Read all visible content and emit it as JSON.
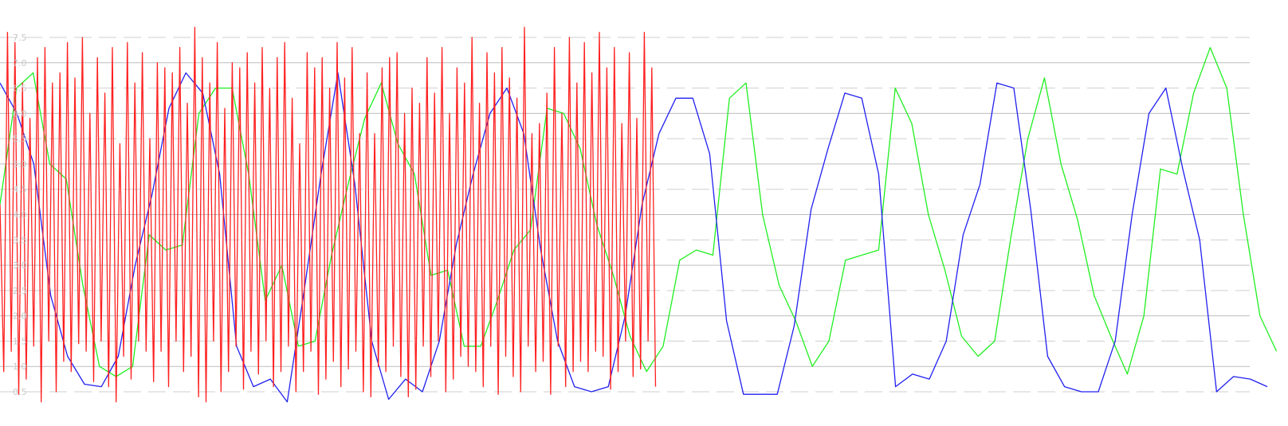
{
  "chart_data": {
    "type": "line",
    "grid": true,
    "legend": "none",
    "ylim": [
      0.3,
      7.7
    ],
    "yticks": [
      {
        "value": 0.5,
        "label": "0.5",
        "style": "dashed"
      },
      {
        "value": 1.0,
        "label": "1.0",
        "style": "solid"
      },
      {
        "value": 1.5,
        "label": "1.5",
        "style": "dashed"
      },
      {
        "value": 2.0,
        "label": "2.0",
        "style": "solid"
      },
      {
        "value": 2.5,
        "label": "2.5",
        "style": "dashed"
      },
      {
        "value": 3.0,
        "label": "3.0",
        "style": "solid"
      },
      {
        "value": 3.5,
        "label": "3.5",
        "style": "dashed"
      },
      {
        "value": 4.0,
        "label": "4.0",
        "style": "solid"
      },
      {
        "value": 4.5,
        "label": "4.5",
        "style": "dashed"
      },
      {
        "value": 5.0,
        "label": "5.0",
        "style": "solid"
      },
      {
        "value": 5.5,
        "label": "5.5",
        "style": "dashed"
      },
      {
        "value": 6.0,
        "label": "6.0",
        "style": "solid"
      },
      {
        "value": 6.5,
        "label": "6.5",
        "style": "dashed"
      },
      {
        "value": 7.0,
        "label": "7.0",
        "style": "solid"
      },
      {
        "value": 7.5,
        "label": "7.5",
        "style": "dashed"
      }
    ],
    "grid_colors": {
      "solid": "#bdbdbd",
      "dashed": "#cfcfcf"
    },
    "series": [
      {
        "color": "#ff2020",
        "values": [
          4.2,
          0.9,
          7.6,
          1.3,
          7.4,
          0.45,
          6.6,
          0.75,
          5.9,
          1.4,
          7.1,
          0.3,
          7.3,
          1.5,
          6.6,
          0.5,
          6.8,
          1.1,
          7.4,
          0.9,
          6.7,
          1.45,
          7.5,
          1.3,
          6.0,
          0.7,
          7.1,
          1.5,
          6.4,
          0.6,
          7.3,
          0.3,
          5.4,
          1.2,
          7.4,
          0.75,
          6.6,
          1.5,
          7.2,
          1.3,
          5.5,
          0.7,
          7.0,
          1.3,
          6.9,
          0.6,
          6.8,
          1.5,
          7.3,
          0.9,
          6.2,
          1.2,
          7.7,
          0.4,
          7.1,
          0.3,
          6.6,
          1.5,
          7.4,
          0.5,
          6.1,
          0.9,
          7.0,
          1.4,
          6.9,
          0.55,
          7.2,
          1.3,
          6.6,
          0.85,
          7.3,
          1.5,
          6.5,
          0.6,
          7.1,
          0.9,
          7.4,
          1.4,
          6.3,
          0.5,
          5.4,
          0.9,
          7.2,
          1.3,
          6.9,
          0.45,
          7.1,
          0.75,
          6.5,
          1.1,
          7.4,
          0.6,
          6.7,
          0.95,
          7.3,
          1.3,
          5.6,
          0.5,
          6.8,
          0.4,
          5.6,
          1.0,
          6.9,
          0.9,
          7.1,
          1.4,
          7.2,
          0.8,
          6.0,
          0.4,
          6.5,
          0.55,
          6.2,
          1.4,
          7.1,
          0.8,
          6.4,
          1.5,
          7.3,
          0.5,
          6.0,
          0.75,
          6.9,
          1.2,
          6.6,
          1.0,
          7.5,
          0.9,
          6.2,
          0.6,
          7.2,
          1.4,
          6.8,
          0.45,
          7.3,
          1.2,
          6.7,
          0.8,
          6.3,
          0.5,
          7.7,
          1.4,
          5.6,
          0.9,
          5.8,
          1.1,
          6.4,
          0.45,
          7.3,
          1.4,
          6.0,
          0.6,
          7.5,
          0.9,
          6.6,
          1.1,
          7.4,
          0.9,
          6.8,
          1.3,
          7.6,
          1.2,
          6.9,
          0.55,
          7.3,
          0.9,
          5.8,
          1.5,
          7.2,
          0.8,
          5.9,
          0.95,
          7.6,
          1.5,
          6.9,
          0.6
        ],
        "x_step": 4.7
      },
      {
        "color": "#2020f0",
        "values": [
          6.6,
          6.0,
          5.0,
          2.4,
          1.2,
          0.65,
          0.6,
          1.2,
          3.0,
          4.4,
          6.1,
          6.8,
          6.4,
          4.8,
          1.4,
          0.6,
          0.75,
          0.3,
          2.5,
          4.8,
          6.8,
          4.6,
          1.5,
          0.35,
          0.75,
          0.5,
          1.5,
          3.4,
          4.8,
          6.0,
          6.5,
          5.6,
          3.3,
          1.5,
          0.6,
          0.5,
          0.6,
          2.0,
          4.2,
          5.6,
          6.3,
          6.3,
          5.2,
          1.9,
          0.45,
          0.45,
          0.45,
          1.8,
          4.1,
          5.3,
          6.4,
          6.3,
          4.8,
          0.6,
          0.85,
          0.75,
          1.5,
          3.6,
          4.6,
          6.6,
          6.5,
          4.1,
          1.2,
          0.6,
          0.5,
          0.5,
          1.5,
          4.0,
          6.0,
          6.5,
          4.9,
          3.5,
          0.5,
          0.8,
          0.75,
          0.6
        ],
        "x_step": 21.2
      },
      {
        "color": "#20ee20",
        "values": [
          4.2,
          6.5,
          6.8,
          5.0,
          4.7,
          2.6,
          1.0,
          0.8,
          1.0,
          3.6,
          3.3,
          3.4,
          6.0,
          6.5,
          6.5,
          4.8,
          2.3,
          3.0,
          1.4,
          1.5,
          3.2,
          4.6,
          5.9,
          6.6,
          5.4,
          4.8,
          2.8,
          2.9,
          1.4,
          1.4,
          2.3,
          3.3,
          3.7,
          6.1,
          6.0,
          5.3,
          3.8,
          2.8,
          1.6,
          0.9,
          1.4,
          3.1,
          3.3,
          3.2,
          6.3,
          6.6,
          4.0,
          2.6,
          1.9,
          1.0,
          1.5,
          3.1,
          3.2,
          3.3,
          6.5,
          5.8,
          4.0,
          2.9,
          1.6,
          1.2,
          1.5,
          3.6,
          5.5,
          6.7,
          5.0,
          3.9,
          2.4,
          1.6,
          0.85,
          2.0,
          4.9,
          4.8,
          6.4,
          7.3,
          6.5,
          4.0,
          2.0,
          1.3
        ],
        "x_step": 20.8
      }
    ]
  }
}
